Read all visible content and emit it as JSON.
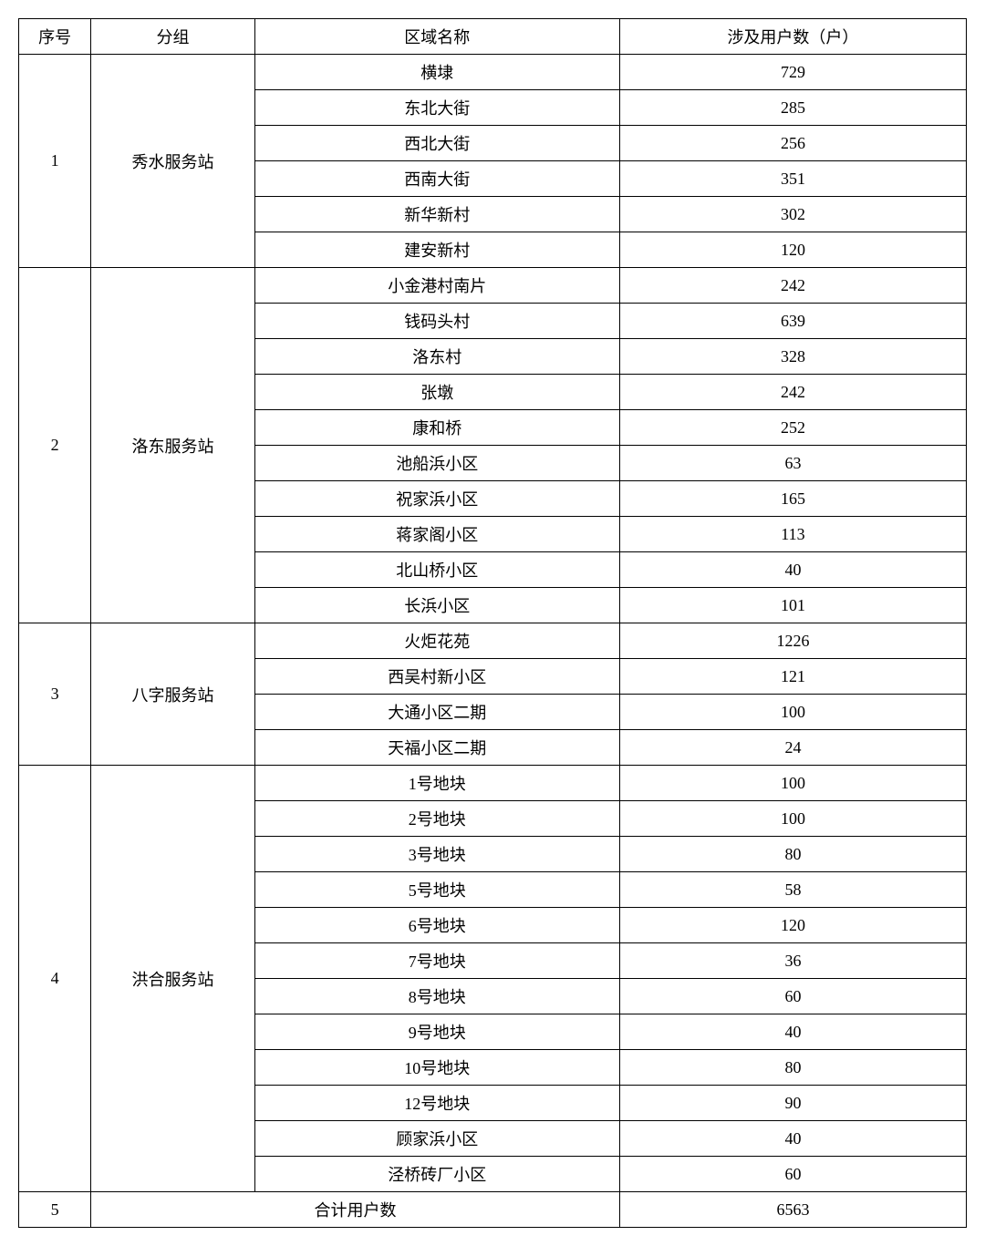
{
  "headers": {
    "seq": "序号",
    "group": "分组",
    "area": "区域名称",
    "count": "涉及用户数（户）"
  },
  "groups": [
    {
      "seq": "1",
      "name": "秀水服务站",
      "rows": [
        {
          "area": "横埭",
          "count": "729"
        },
        {
          "area": "东北大街",
          "count": "285"
        },
        {
          "area": "西北大街",
          "count": "256"
        },
        {
          "area": "西南大街",
          "count": "351"
        },
        {
          "area": "新华新村",
          "count": "302"
        },
        {
          "area": "建安新村",
          "count": "120"
        }
      ]
    },
    {
      "seq": "2",
      "name": "洛东服务站",
      "rows": [
        {
          "area": "小金港村南片",
          "count": "242"
        },
        {
          "area": "钱码头村",
          "count": "639"
        },
        {
          "area": "洛东村",
          "count": "328"
        },
        {
          "area": "张墩",
          "count": "242"
        },
        {
          "area": "康和桥",
          "count": "252"
        },
        {
          "area": "池船浜小区",
          "count": "63"
        },
        {
          "area": "祝家浜小区",
          "count": "165"
        },
        {
          "area": "蒋家阁小区",
          "count": "113"
        },
        {
          "area": "北山桥小区",
          "count": "40"
        },
        {
          "area": "长浜小区",
          "count": "101"
        }
      ]
    },
    {
      "seq": "3",
      "name": "八字服务站",
      "rows": [
        {
          "area": "火炬花苑",
          "count": "1226"
        },
        {
          "area": "西吴村新小区",
          "count": "121"
        },
        {
          "area": "大通小区二期",
          "count": "100"
        },
        {
          "area": "天福小区二期",
          "count": "24"
        }
      ]
    },
    {
      "seq": "4",
      "name": "洪合服务站",
      "rows": [
        {
          "area": "1号地块",
          "count": "100"
        },
        {
          "area": "2号地块",
          "count": "100"
        },
        {
          "area": "3号地块",
          "count": "80"
        },
        {
          "area": "5号地块",
          "count": "58"
        },
        {
          "area": "6号地块",
          "count": "120"
        },
        {
          "area": "7号地块",
          "count": "36"
        },
        {
          "area": "8号地块",
          "count": "60"
        },
        {
          "area": "9号地块",
          "count": "40"
        },
        {
          "area": "10号地块",
          "count": "80"
        },
        {
          "area": "12号地块",
          "count": "90"
        },
        {
          "area": "顾家浜小区",
          "count": "40"
        },
        {
          "area": "泾桥砖厂小区",
          "count": "60"
        }
      ]
    }
  ],
  "total": {
    "seq": "5",
    "label": "合计用户数",
    "count": "6563"
  }
}
